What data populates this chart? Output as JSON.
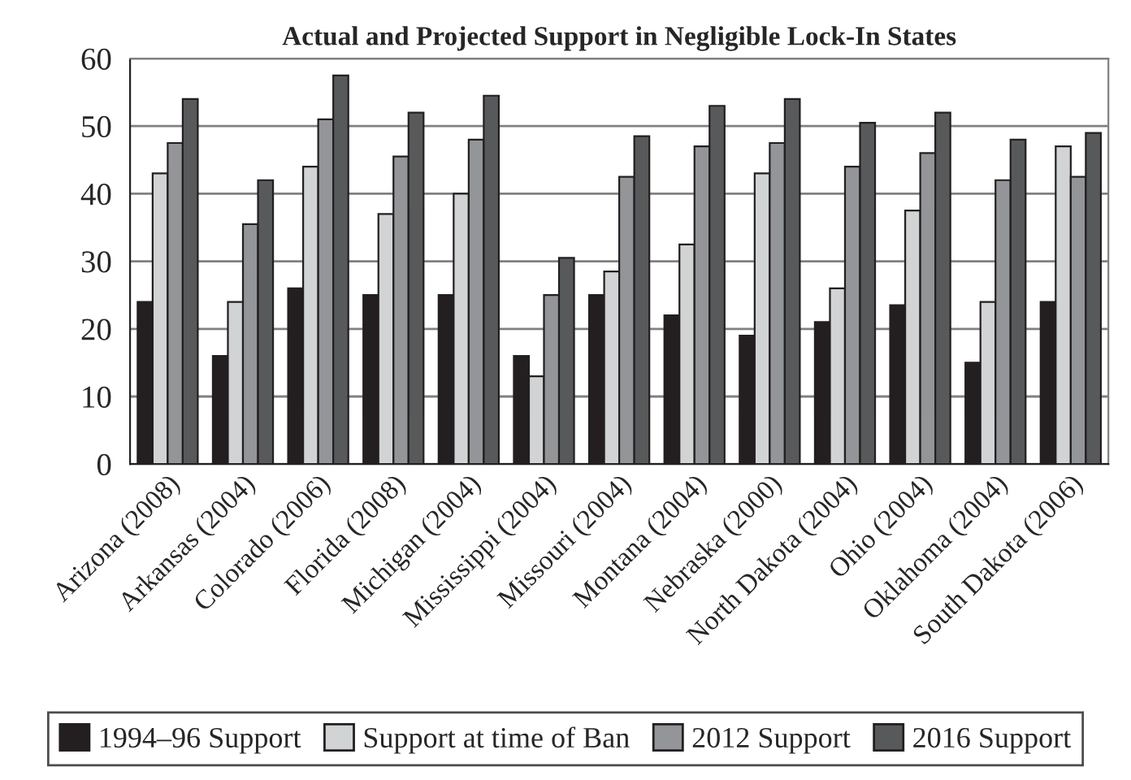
{
  "chart_data": {
    "type": "bar",
    "title": "Actual and Projected Support in Negligible Lock-In States",
    "categories": [
      "Arizona (2008)",
      "Arkansas (2004)",
      "Colorado (2006)",
      "Florida (2008)",
      "Michigan (2004)",
      "Mississippi (2004)",
      "Missouri (2004)",
      "Montana (2004)",
      "Nebraska (2000)",
      "North Dakota (2004)",
      "Ohio (2004)",
      "Oklahoma (2004)",
      "South Dakota (2006)"
    ],
    "series": [
      {
        "name": "1994–96 Support",
        "color": "#231f20",
        "values": [
          24,
          16,
          26,
          25,
          25,
          16,
          25,
          22,
          19,
          21,
          23.5,
          15,
          24
        ]
      },
      {
        "name": "Support at time of Ban",
        "color": "#d1d3d4",
        "values": [
          43,
          24,
          44,
          37,
          40,
          13,
          28.5,
          32.5,
          43,
          26,
          37.5,
          24,
          47
        ]
      },
      {
        "name": "2012 Support",
        "color": "#939598",
        "values": [
          47.5,
          35.5,
          51,
          45.5,
          48,
          25,
          42.5,
          47,
          47.5,
          44,
          46,
          42,
          42.5
        ]
      },
      {
        "name": "2016 Support",
        "color": "#58595b",
        "values": [
          54,
          42,
          57.5,
          52,
          54.5,
          30.5,
          48.5,
          53,
          54,
          50.5,
          52,
          48,
          49
        ]
      }
    ],
    "ylim": [
      0,
      60
    ],
    "yticks": [
      0,
      10,
      20,
      30,
      40,
      50,
      60
    ],
    "grid": "y",
    "legend": "bottom"
  }
}
